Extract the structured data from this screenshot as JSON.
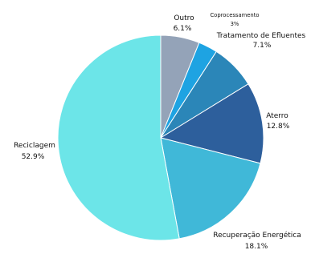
{
  "chart_data": {
    "type": "pie",
    "slices": [
      {
        "label": "Outro",
        "value_text": "6.1%",
        "value": 6.1,
        "color": "#94A3B8"
      },
      {
        "label": "Coprocessamento",
        "value_text": "3%",
        "value": 3.0,
        "color": "#1EA3E2"
      },
      {
        "label": "Tratamento de Efluentes",
        "value_text": "7.1%",
        "value": 7.1,
        "color": "#2B86B8"
      },
      {
        "label": "Aterro",
        "value_text": "12.8%",
        "value": 12.8,
        "color": "#2D5F9C"
      },
      {
        "label": "Recuperação Energética",
        "value_text": "18.1%",
        "value": 18.1,
        "color": "#40B8D8"
      },
      {
        "label": "Reciclagem",
        "value_text": "52.9%",
        "value": 52.9,
        "color": "#6CE5E8"
      }
    ],
    "start_angle": "top",
    "direction": "clockwise",
    "legend": "none"
  }
}
